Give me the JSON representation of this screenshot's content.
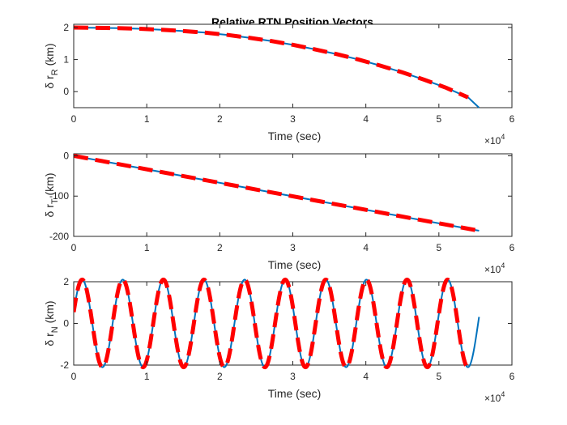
{
  "chart_data": [
    {
      "type": "line",
      "title": "Relative RTN Position Vectors",
      "xlabel": "Time (sec)",
      "ylabel": {
        "prefix": "δ r",
        "sub": "R",
        "suffix": " (km)"
      },
      "x_exponent_label": {
        "base": "×10",
        "exp": "4"
      },
      "xlim": [
        0,
        60000
      ],
      "ylim": [
        -0.5,
        2.1
      ],
      "xticks": [
        0,
        10000,
        20000,
        30000,
        40000,
        50000,
        60000
      ],
      "xtick_labels": [
        "0",
        "1",
        "2",
        "3",
        "4",
        "5",
        "6"
      ],
      "yticks": [
        0,
        1,
        2
      ],
      "ytick_labels": [
        "0",
        "1",
        "2"
      ],
      "series": [
        {
          "color": "#0072BD",
          "style": "solid",
          "x": [
            0,
            3000,
            6000,
            9000,
            12000,
            15000,
            18000,
            21000,
            24000,
            27000,
            30000,
            33000,
            36000,
            39000,
            42000,
            45000,
            48000,
            51000,
            54000,
            55500
          ],
          "y": [
            2.0,
            1.99,
            1.98,
            1.96,
            1.93,
            1.89,
            1.84,
            1.77,
            1.68,
            1.58,
            1.46,
            1.32,
            1.17,
            1.0,
            0.81,
            0.6,
            0.37,
            0.12,
            -0.18,
            -0.5
          ]
        },
        {
          "color": "#FF0000",
          "style": "dashed",
          "x": [
            0,
            3000,
            6000,
            9000,
            12000,
            15000,
            18000,
            21000,
            24000,
            27000,
            30000,
            33000,
            36000,
            39000,
            42000,
            45000,
            48000,
            51000,
            54000
          ],
          "y": [
            2.0,
            1.99,
            1.98,
            1.96,
            1.93,
            1.89,
            1.84,
            1.77,
            1.68,
            1.58,
            1.46,
            1.32,
            1.17,
            1.0,
            0.81,
            0.6,
            0.37,
            0.12,
            -0.18
          ]
        }
      ]
    },
    {
      "type": "line",
      "title": "",
      "xlabel": "Time (sec)",
      "ylabel": {
        "prefix": "δ r",
        "sub": "T",
        "suffix": " (km)"
      },
      "x_exponent_label": {
        "base": "×10",
        "exp": "4"
      },
      "xlim": [
        0,
        60000
      ],
      "ylim": [
        -200,
        5
      ],
      "xticks": [
        0,
        10000,
        20000,
        30000,
        40000,
        50000,
        60000
      ],
      "xtick_labels": [
        "0",
        "1",
        "2",
        "3",
        "4",
        "5",
        "6"
      ],
      "yticks": [
        0,
        -100,
        -200
      ],
      "ytick_labels": [
        "0",
        "-100",
        "-200"
      ],
      "series": [
        {
          "color": "#0072BD",
          "style": "solid",
          "x": [
            0,
            55500
          ],
          "y": [
            0,
            -186
          ]
        },
        {
          "color": "#FF0000",
          "style": "dashed",
          "x": [
            0,
            55500
          ],
          "y": [
            0,
            -186
          ]
        }
      ]
    },
    {
      "type": "line",
      "title": "",
      "xlabel": "Time (sec)",
      "ylabel": {
        "prefix": "δ r",
        "sub": "N",
        "suffix": " (km)"
      },
      "x_exponent_label": {
        "base": "×10",
        "exp": "4"
      },
      "xlim": [
        0,
        60000
      ],
      "ylim": [
        -2,
        2
      ],
      "xticks": [
        0,
        10000,
        20000,
        30000,
        40000,
        50000,
        60000
      ],
      "xtick_labels": [
        "0",
        "1",
        "2",
        "3",
        "4",
        "5",
        "6"
      ],
      "yticks": [
        2,
        0,
        -2
      ],
      "ytick_labels": [
        "2",
        "0",
        "-2"
      ],
      "series": [
        {
          "color": "#0072BD",
          "style": "solid",
          "function": "sine",
          "amplitude": 2.1,
          "period": 5560,
          "phase_deg": 15,
          "x_range": [
            0,
            55500
          ]
        },
        {
          "color": "#FF0000",
          "style": "dashed",
          "function": "sine",
          "amplitude": 2.1,
          "period": 5560,
          "phase_deg": 15,
          "x_range": [
            0,
            53800
          ]
        }
      ]
    }
  ]
}
